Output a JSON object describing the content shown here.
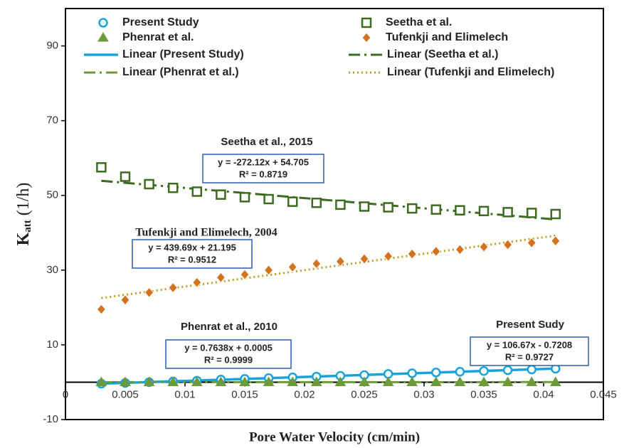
{
  "chart_data": {
    "type": "scatter",
    "x_label": "Pore Water Velocity (cm/min)",
    "y_label": "K",
    "y_label_sub": "att",
    "y_label_unit": "(1/h)",
    "xlim": [
      0,
      0.045
    ],
    "xticks": [
      0,
      0.005,
      0.01,
      0.015,
      0.02,
      0.025,
      0.03,
      0.035,
      0.04,
      0.045
    ],
    "ylim": [
      -10,
      100
    ],
    "yticks": [
      -10,
      10,
      30,
      50,
      70,
      90
    ],
    "x": [
      0.003,
      0.005,
      0.007,
      0.009,
      0.011,
      0.013,
      0.015,
      0.017,
      0.019,
      0.021,
      0.023,
      0.025,
      0.027,
      0.029,
      0.031,
      0.033,
      0.035,
      0.037,
      0.039,
      0.041
    ],
    "series": [
      {
        "name": "Present Study",
        "color": "#1aa3d9",
        "marker": "circle",
        "values": [
          -0.4,
          -0.2,
          0.0,
          0.2,
          0.4,
          0.7,
          0.9,
          1.1,
          1.3,
          1.5,
          1.7,
          1.9,
          2.2,
          2.4,
          2.6,
          2.8,
          3.0,
          3.2,
          3.4,
          3.6
        ]
      },
      {
        "name": "Seetha et al.",
        "color": "#3d6b22",
        "marker": "square",
        "values": [
          57.5,
          55,
          53,
          52,
          51,
          50.2,
          49.5,
          49,
          48.3,
          48,
          47.5,
          47,
          46.8,
          46.5,
          46.2,
          46,
          45.8,
          45.5,
          45.3,
          45
        ]
      },
      {
        "name": "Phenrat et al.",
        "color": "#6d9a3a",
        "marker": "triangle",
        "values": [
          0,
          0,
          0,
          0,
          0,
          0,
          0,
          0,
          0,
          0,
          0,
          0,
          0,
          0,
          0,
          0,
          0,
          0,
          0,
          0
        ]
      },
      {
        "name": "Tufenkji and Elimelech",
        "color": "#d4731f",
        "marker": "diamond",
        "values": [
          19.5,
          22,
          24,
          25.3,
          26.7,
          28,
          28.8,
          30,
          30.8,
          31.7,
          32.3,
          33,
          33.7,
          34.3,
          35,
          35.5,
          36.2,
          36.8,
          37.3,
          37.8
        ]
      }
    ],
    "trendlines": [
      {
        "name": "Linear (Present Study)",
        "color": "#1aa3d9",
        "dash": "solid",
        "x": [
          0.003,
          0.041
        ],
        "values": [
          -0.401,
          3.652
        ]
      },
      {
        "name": "Linear (Seetha et al.)",
        "color": "#3d6b22",
        "dash": "dashdot",
        "x": [
          0.003,
          0.041
        ],
        "values": [
          53.889,
          43.548
        ]
      },
      {
        "name": "Linear (Phenrat et al.)",
        "color": "#6d9a3a",
        "dash": "dashdot",
        "x": [
          0.003,
          0.041
        ],
        "values": [
          0.003,
          0.032
        ]
      },
      {
        "name": "Linear (Tufenkji and Elimelech)",
        "color": "#b8a020",
        "dash": "dotted",
        "x": [
          0.003,
          0.041
        ],
        "values": [
          22.514,
          39.222
        ]
      }
    ],
    "annotations": [
      {
        "title": "Seetha et al., 2015",
        "equation": "y = -272.12x + 54.705",
        "r2": "R² = 0.8719"
      },
      {
        "title": "Tufenkji and Elimelech, 2004",
        "equation": "y = 439.69x + 21.195",
        "r2": "R² = 0.9512"
      },
      {
        "title": "Phenrat et al., 2010",
        "equation": "y = 0.7638x + 0.0005",
        "r2": "R² = 0.9999"
      },
      {
        "title": "Present Sudy",
        "equation": "y = 106.67x - 0.7208",
        "r2": "R² = 0.9727"
      }
    ]
  }
}
